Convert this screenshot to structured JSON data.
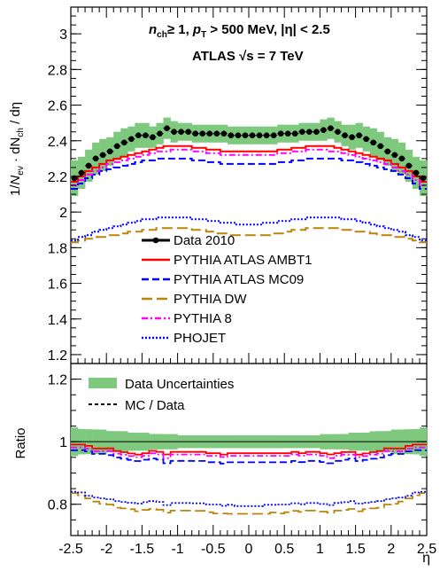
{
  "chart_data": [
    {
      "panel": "main",
      "type": "line",
      "title": "",
      "annotations": [
        "n",
        "ch",
        "≥ 1, ",
        "p",
        "T",
        " > 500 MeV, |η| < 2.5",
        "ATLAS ",
        "√s",
        " = 7 TeV"
      ],
      "ylabel": [
        "1/",
        "N",
        "ev",
        " · dN",
        "ch",
        " / dη"
      ],
      "xlabel": "η",
      "xlim": [
        -2.5,
        2.5
      ],
      "ylim": [
        1.15,
        3.15
      ],
      "yticks": [
        "1.2",
        "1.4",
        "1.6",
        "1.8",
        "2",
        "2.2",
        "2.4",
        "2.6",
        "2.8",
        "3"
      ],
      "ytick_values": [
        1.2,
        1.4,
        1.6,
        1.8,
        2.0,
        2.2,
        2.4,
        2.6,
        2.8,
        3.0
      ],
      "x": [
        -2.45,
        -2.35,
        -2.25,
        -2.15,
        -2.05,
        -1.95,
        -1.85,
        -1.75,
        -1.65,
        -1.55,
        -1.45,
        -1.35,
        -1.25,
        -1.15,
        -1.05,
        -0.95,
        -0.85,
        -0.75,
        -0.65,
        -0.55,
        -0.45,
        -0.35,
        -0.25,
        -0.15,
        -0.05,
        0.05,
        0.15,
        0.25,
        0.35,
        0.45,
        0.55,
        0.65,
        0.75,
        0.85,
        0.95,
        1.05,
        1.15,
        1.25,
        1.35,
        1.45,
        1.55,
        1.65,
        1.75,
        1.85,
        1.95,
        2.05,
        2.15,
        2.25,
        2.35,
        2.45
      ],
      "series": [
        {
          "name": "Data 2010",
          "style": "points",
          "color": "#000000",
          "values": [
            2.19,
            2.22,
            2.26,
            2.3,
            2.32,
            2.34,
            2.37,
            2.39,
            2.41,
            2.43,
            2.43,
            2.42,
            2.44,
            2.47,
            2.45,
            2.45,
            2.45,
            2.44,
            2.44,
            2.44,
            2.44,
            2.44,
            2.43,
            2.43,
            2.43,
            2.43,
            2.43,
            2.43,
            2.43,
            2.44,
            2.44,
            2.44,
            2.45,
            2.45,
            2.45,
            2.46,
            2.47,
            2.45,
            2.43,
            2.42,
            2.43,
            2.41,
            2.39,
            2.37,
            2.34,
            2.32,
            2.3,
            2.26,
            2.22,
            2.19
          ],
          "band": [
            0.1,
            0.09,
            0.09,
            0.09,
            0.09,
            0.08,
            0.08,
            0.08,
            0.07,
            0.07,
            0.07,
            0.06,
            0.06,
            0.06,
            0.06,
            0.05,
            0.05,
            0.05,
            0.05,
            0.05,
            0.05,
            0.05,
            0.05,
            0.05,
            0.05,
            0.05,
            0.05,
            0.05,
            0.05,
            0.05,
            0.05,
            0.05,
            0.05,
            0.05,
            0.05,
            0.06,
            0.06,
            0.06,
            0.06,
            0.07,
            0.07,
            0.07,
            0.08,
            0.08,
            0.08,
            0.09,
            0.09,
            0.09,
            0.09,
            0.1
          ]
        },
        {
          "name": "PYTHIA ATLAS AMBT1",
          "style": "step",
          "dash": "solid",
          "color": "#ff0000",
          "values": [
            2.17,
            2.2,
            2.23,
            2.25,
            2.27,
            2.29,
            2.3,
            2.31,
            2.32,
            2.33,
            2.34,
            2.35,
            2.36,
            2.37,
            2.37,
            2.37,
            2.37,
            2.36,
            2.36,
            2.35,
            2.35,
            2.34,
            2.34,
            2.34,
            2.34,
            2.34,
            2.34,
            2.34,
            2.34,
            2.35,
            2.35,
            2.36,
            2.36,
            2.37,
            2.37,
            2.37,
            2.37,
            2.36,
            2.35,
            2.34,
            2.33,
            2.32,
            2.31,
            2.3,
            2.29,
            2.27,
            2.25,
            2.23,
            2.2,
            2.17
          ]
        },
        {
          "name": "PYTHIA ATLAS MC09",
          "style": "step",
          "dash": "dashed",
          "color": "#0000ff",
          "values": [
            2.13,
            2.16,
            2.19,
            2.21,
            2.23,
            2.24,
            2.25,
            2.26,
            2.27,
            2.28,
            2.29,
            2.29,
            2.3,
            2.3,
            2.3,
            2.3,
            2.3,
            2.29,
            2.29,
            2.28,
            2.28,
            2.27,
            2.27,
            2.27,
            2.27,
            2.27,
            2.27,
            2.27,
            2.27,
            2.28,
            2.28,
            2.29,
            2.29,
            2.3,
            2.3,
            2.3,
            2.3,
            2.3,
            2.29,
            2.29,
            2.28,
            2.27,
            2.26,
            2.25,
            2.24,
            2.23,
            2.21,
            2.19,
            2.16,
            2.13
          ]
        },
        {
          "name": "PYTHIA DW",
          "style": "step",
          "dash": "longdash",
          "color": "#b8860b",
          "values": [
            1.83,
            1.84,
            1.85,
            1.86,
            1.86,
            1.87,
            1.87,
            1.88,
            1.89,
            1.89,
            1.9,
            1.9,
            1.91,
            1.91,
            1.91,
            1.91,
            1.91,
            1.9,
            1.9,
            1.89,
            1.88,
            1.88,
            1.87,
            1.87,
            1.87,
            1.87,
            1.87,
            1.87,
            1.88,
            1.88,
            1.89,
            1.9,
            1.9,
            1.91,
            1.91,
            1.91,
            1.91,
            1.91,
            1.9,
            1.9,
            1.89,
            1.89,
            1.88,
            1.87,
            1.87,
            1.86,
            1.86,
            1.85,
            1.84,
            1.83
          ]
        },
        {
          "name": "PYTHIA 8",
          "style": "step",
          "dash": "dashdot",
          "color": "#ff00ff",
          "values": [
            2.15,
            2.18,
            2.21,
            2.23,
            2.25,
            2.27,
            2.28,
            2.29,
            2.3,
            2.31,
            2.32,
            2.33,
            2.34,
            2.34,
            2.35,
            2.35,
            2.35,
            2.34,
            2.34,
            2.33,
            2.33,
            2.32,
            2.32,
            2.32,
            2.32,
            2.32,
            2.32,
            2.32,
            2.32,
            2.33,
            2.33,
            2.34,
            2.34,
            2.35,
            2.35,
            2.35,
            2.34,
            2.34,
            2.33,
            2.32,
            2.31,
            2.3,
            2.29,
            2.28,
            2.27,
            2.25,
            2.23,
            2.21,
            2.18,
            2.15
          ]
        },
        {
          "name": "PHOJET",
          "style": "step",
          "dash": "dotted",
          "color": "#0000ff",
          "values": [
            1.84,
            1.86,
            1.87,
            1.89,
            1.9,
            1.91,
            1.92,
            1.93,
            1.94,
            1.95,
            1.96,
            1.96,
            1.97,
            1.97,
            1.97,
            1.97,
            1.97,
            1.96,
            1.96,
            1.95,
            1.95,
            1.94,
            1.94,
            1.93,
            1.93,
            1.93,
            1.93,
            1.94,
            1.94,
            1.95,
            1.95,
            1.96,
            1.96,
            1.97,
            1.97,
            1.97,
            1.97,
            1.97,
            1.96,
            1.96,
            1.95,
            1.94,
            1.93,
            1.92,
            1.91,
            1.9,
            1.89,
            1.87,
            1.86,
            1.84
          ]
        }
      ],
      "legend": [
        "Data 2010",
        "PYTHIA ATLAS AMBT1",
        "PYTHIA ATLAS MC09",
        "PYTHIA DW",
        "PYTHIA 8",
        "PHOJET"
      ],
      "legend_placement": "lower-center"
    },
    {
      "panel": "ratio",
      "type": "line",
      "ylabel": "Ratio",
      "xlabel": "η",
      "xlim": [
        -2.5,
        2.5
      ],
      "ylim": [
        0.7,
        1.25
      ],
      "yticks": [
        "0.8",
        "1",
        "1.2"
      ],
      "ytick_values": [
        0.8,
        1.0,
        1.2
      ],
      "xticks": [
        "-2.5",
        "-2",
        "-1.5",
        "-1",
        "-0.5",
        "0",
        "0.5",
        "1",
        "1.5",
        "2",
        "2.5"
      ],
      "xtick_values": [
        -2.5,
        -2.0,
        -1.5,
        -1.0,
        -0.5,
        0.0,
        0.5,
        1.0,
        1.5,
        2.0,
        2.5
      ],
      "legend": [
        "Data Uncertainties",
        "MC / Data"
      ],
      "legend_placement": "top-left",
      "reference_line": 1.0,
      "band_note": "ratio band = band / data"
    }
  ],
  "colors": {
    "band": "#7fc97f",
    "axis": "#000000"
  }
}
